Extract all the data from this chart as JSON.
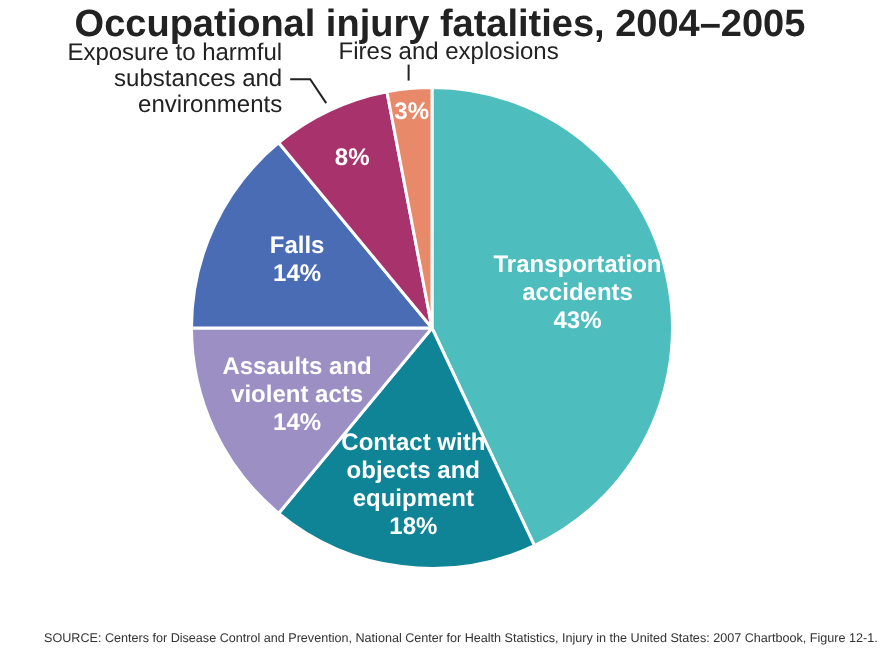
{
  "chart_data": {
    "type": "pie",
    "title": "Occupational injury fatalities, 2004–2005",
    "categories": [
      "Transportation accidents",
      "Contact with objects and equipment",
      "Assaults and violent acts",
      "Falls",
      "Exposure to harmful substances and environments",
      "Fires and explosions"
    ],
    "values": [
      43,
      18,
      14,
      14,
      8,
      3
    ],
    "colors": [
      "#4dbdbd",
      "#0f8496",
      "#9b8fc4",
      "#4a6cb5",
      "#a8326b",
      "#e8896a"
    ],
    "value_labels": [
      "43%",
      "18%",
      "14%",
      "14%",
      "8%",
      "3%"
    ],
    "annotations": [
      "SOURCE: Centers for Disease Control and Prevention, National Center for Health Statistics, Injury in the United States: 2007 Chartbook, Figure 12-1."
    ]
  }
}
